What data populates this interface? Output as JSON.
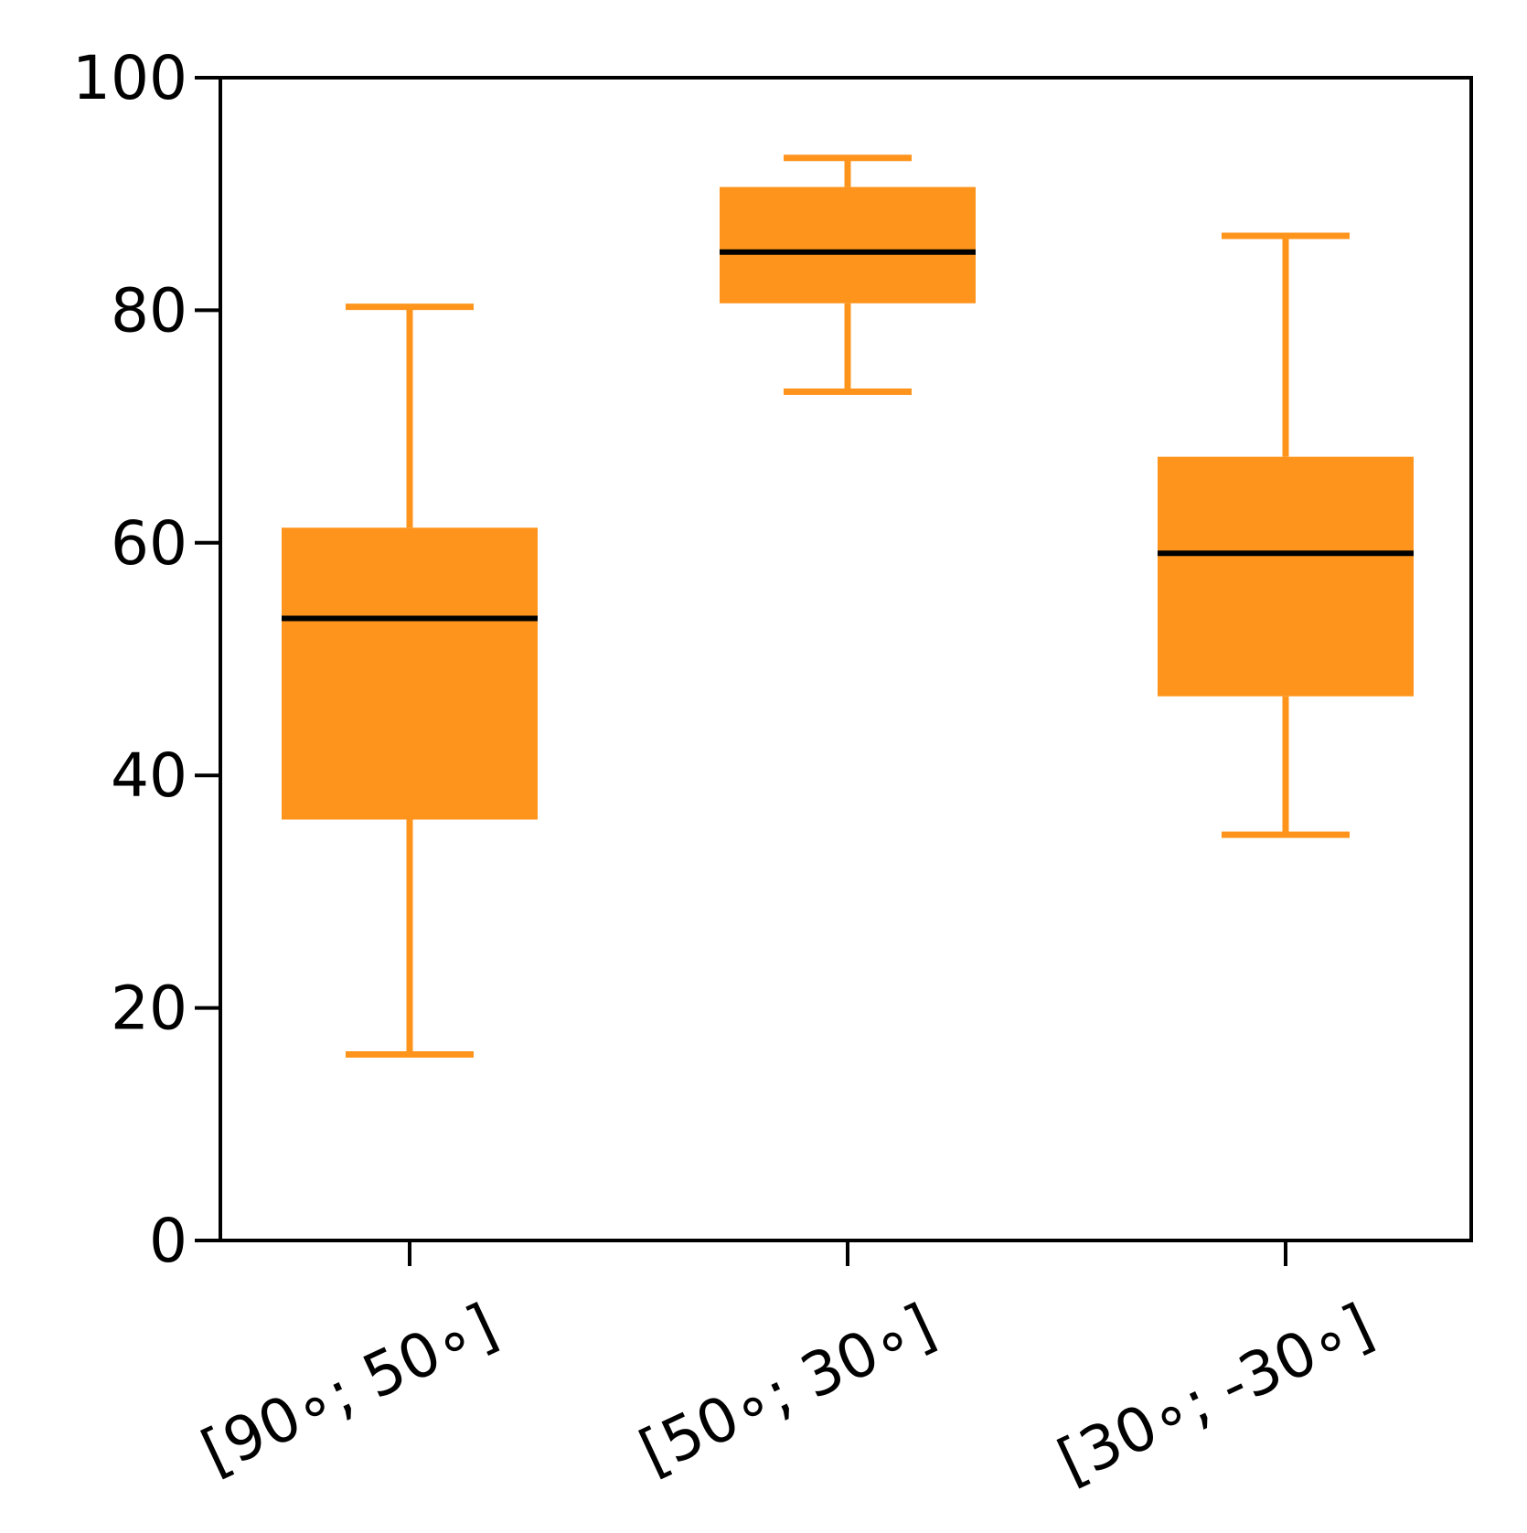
{
  "chart_data": {
    "type": "box",
    "categories": [
      "[90∘; 50∘]",
      "[50∘; 30∘]",
      "[30∘; -30∘]"
    ],
    "boxes": [
      {
        "whisker_low": 16,
        "q1": 36.2,
        "median": 53.5,
        "q3": 61.3,
        "whisker_high": 80.3
      },
      {
        "whisker_low": 73,
        "q1": 80.6,
        "median": 85,
        "q3": 90.6,
        "whisker_high": 93.1
      },
      {
        "whisker_low": 34.9,
        "q1": 46.8,
        "median": 59.1,
        "q3": 67.4,
        "whisker_high": 86.4
      }
    ],
    "yticks": [
      0,
      20,
      40,
      60,
      80,
      100
    ],
    "ylim": [
      0,
      100
    ],
    "grid": false,
    "colors": {
      "box_fill": "#fe941c",
      "whisker": "#fe941c",
      "median": "#000000",
      "axes": "#000000"
    }
  }
}
